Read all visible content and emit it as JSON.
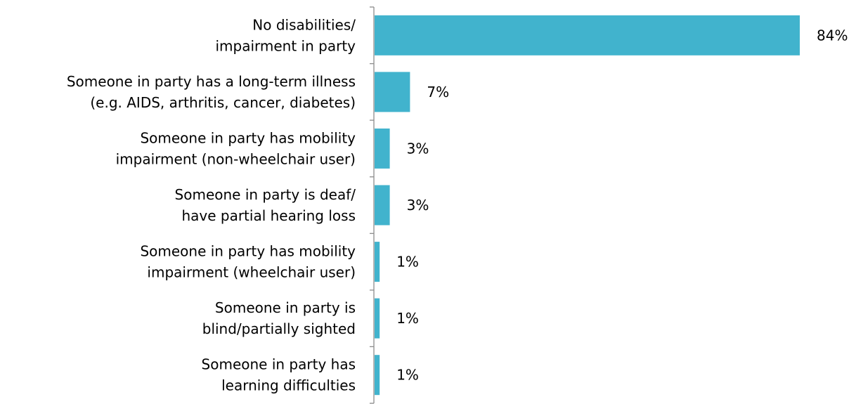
{
  "chart_data": {
    "type": "bar",
    "orientation": "horizontal",
    "categories": [
      [
        "No disabilities/",
        "impairment in party"
      ],
      [
        "Someone in party has a long-term illness",
        "(e.g. AIDS, arthritis, cancer, diabetes)"
      ],
      [
        "Someone in party has mobility",
        "impairment (non-wheelchair user)"
      ],
      [
        "Someone in party is deaf/",
        "have partial hearing loss"
      ],
      [
        "Someone in party has mobility",
        "impairment (wheelchair user)"
      ],
      [
        "Someone in party is",
        "blind/partially sighted"
      ],
      [
        "Someone in party has",
        "learning difficulties"
      ]
    ],
    "values": [
      84,
      7,
      3,
      3,
      1,
      1,
      1
    ],
    "value_labels": [
      "84%",
      "7%",
      "3%",
      "3%",
      "1%",
      "1%",
      "1%"
    ],
    "unit": "%",
    "xlim": [
      0,
      84
    ],
    "grid": false,
    "legend": "none",
    "colors": {
      "bar": "#41b3cd",
      "axis": "#8c8c8c",
      "text": "#000000"
    }
  }
}
